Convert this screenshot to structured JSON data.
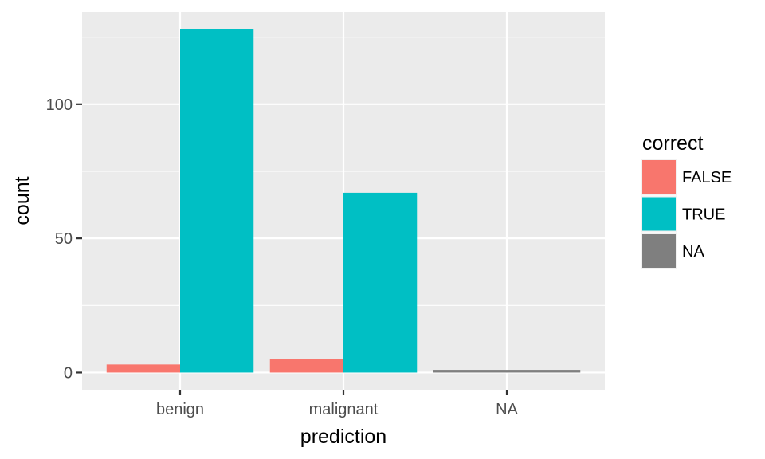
{
  "chart_data": {
    "type": "bar",
    "layout": "dodged",
    "xlabel": "prediction",
    "ylabel": "count",
    "categories": [
      "benign",
      "malignant",
      "NA"
    ],
    "ylim": [
      -6.4,
      134.4
    ],
    "yticks": [
      0,
      50,
      100
    ],
    "ytick_labels": [
      "0",
      "50",
      "100"
    ],
    "grid": true,
    "legend": {
      "title": "correct",
      "position": "right",
      "entries": [
        "FALSE",
        "TRUE",
        "NA"
      ]
    },
    "series": [
      {
        "name": "FALSE",
        "color": "#F8766D",
        "values": [
          3,
          5,
          null
        ]
      },
      {
        "name": "TRUE",
        "color": "#00BFC4",
        "values": [
          128,
          67,
          null
        ]
      },
      {
        "name": "NA",
        "color": "#7F7F7F",
        "values": [
          null,
          null,
          1
        ]
      }
    ],
    "panel_background": "#EBEBEB",
    "grid_color": "#FFFFFF"
  }
}
